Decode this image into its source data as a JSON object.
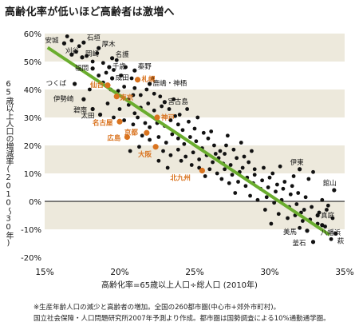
{
  "title": "高齢化率が低いほど高齢者は激増へ",
  "notes": [
    "※生産年齢人口の減少と高齢者の増加。全国の260都市圏(中心市+郊外市町村)。",
    "国立社会保障・人口問題研究所2007年予測より作成。都市圏は国勢調査による10%通勤通学圏。"
  ],
  "colors": {
    "band": "#ede9dc",
    "trend": "#6aad2e",
    "dot": "#111111",
    "highlight": "#d9731f",
    "label_normal": "#111111",
    "label_highlight": "#d9731f"
  },
  "chart_data": {
    "type": "scatter",
    "title": "高齢化率が低いほど高齢者は激増へ",
    "xlabel": "高齢化率=65歳以上人口÷総人口 (2010年)",
    "ylabel": "65歳以上人口の増減率(2010〜30年)",
    "xlim": [
      15,
      35
    ],
    "ylim": [
      -20,
      60
    ],
    "xticks": [
      "15%",
      "20%",
      "25%",
      "30%",
      "35%"
    ],
    "yticks": [
      "-20%",
      "-10%",
      "0%",
      "10%",
      "20%",
      "30%",
      "40%",
      "50%",
      "60%"
    ],
    "trend_line": {
      "x": [
        15.2,
        34.0
      ],
      "y": [
        55.0,
        -12.0
      ]
    },
    "labeled_points": [
      {
        "name": "安城",
        "x": 16.3,
        "y": 56.5,
        "highlight": false
      },
      {
        "name": "石垣",
        "x": 17.6,
        "y": 56.8,
        "highlight": false
      },
      {
        "name": "刈谷",
        "x": 16.8,
        "y": 52.5,
        "highlight": false
      },
      {
        "name": "岡崎",
        "x": 17.5,
        "y": 51.5,
        "highlight": false
      },
      {
        "name": "厚木",
        "x": 18.6,
        "y": 54.8,
        "highlight": false
      },
      {
        "name": "名護",
        "x": 19.5,
        "y": 51.2,
        "highlight": false
      },
      {
        "name": "福岡",
        "x": 18.2,
        "y": 47.5,
        "highlight": false
      },
      {
        "name": "千歳",
        "x": 19.3,
        "y": 48.0,
        "highlight": false
      },
      {
        "name": "秦野",
        "x": 21.0,
        "y": 46.8,
        "highlight": false
      },
      {
        "name": "成田",
        "x": 19.5,
        "y": 44.0,
        "highlight": false
      },
      {
        "name": "つくば",
        "x": 17.0,
        "y": 42.0,
        "highlight": false
      },
      {
        "name": "仙台",
        "x": 19.2,
        "y": 41.5,
        "highlight": true
      },
      {
        "name": "札幌",
        "x": 21.2,
        "y": 43.5,
        "highlight": true
      },
      {
        "name": "東京",
        "x": 19.8,
        "y": 37.5,
        "highlight": true
      },
      {
        "name": "鹿嶋・神栖",
        "x": 22.0,
        "y": 42.0,
        "highlight": false
      },
      {
        "name": "伊勢崎",
        "x": 17.6,
        "y": 36.5,
        "highlight": false
      },
      {
        "name": "宮古島",
        "x": 23.0,
        "y": 35.5,
        "highlight": false
      },
      {
        "name": "碧南",
        "x": 18.2,
        "y": 33.0,
        "highlight": false
      },
      {
        "name": "太田",
        "x": 18.7,
        "y": 31.0,
        "highlight": false
      },
      {
        "name": "神戸",
        "x": 22.5,
        "y": 30.0,
        "highlight": true
      },
      {
        "name": "名古屋",
        "x": 20.0,
        "y": 28.5,
        "highlight": true
      },
      {
        "name": "広島",
        "x": 20.5,
        "y": 23.0,
        "highlight": true
      },
      {
        "name": "京都",
        "x": 21.8,
        "y": 24.5,
        "highlight": true
      },
      {
        "name": "大阪",
        "x": 22.4,
        "y": 19.5,
        "highlight": true
      },
      {
        "name": "北九州",
        "x": 25.5,
        "y": 11.0,
        "highlight": true
      },
      {
        "name": "伊東",
        "x": 32.0,
        "y": 11.5,
        "highlight": false
      },
      {
        "name": "館山",
        "x": 34.3,
        "y": 4.0,
        "highlight": false
      },
      {
        "name": "真庭",
        "x": 33.2,
        "y": -5.0,
        "highlight": false
      },
      {
        "name": "八幡浜",
        "x": 33.5,
        "y": -8.5,
        "highlight": false
      },
      {
        "name": "美馬",
        "x": 32.5,
        "y": -10.5,
        "highlight": false
      },
      {
        "name": "萩",
        "x": 34.4,
        "y": -11.5,
        "highlight": false
      },
      {
        "name": "釜石",
        "x": 32.9,
        "y": -14.5,
        "highlight": false
      }
    ],
    "points": [
      [
        16.5,
        59
      ],
      [
        16.8,
        57.5
      ],
      [
        17.1,
        53.5
      ],
      [
        17.3,
        55.5
      ],
      [
        17.8,
        52
      ],
      [
        18.2,
        50
      ],
      [
        18.5,
        53
      ],
      [
        18.9,
        49.5
      ],
      [
        19.1,
        46
      ],
      [
        19.6,
        47
      ],
      [
        20.1,
        45
      ],
      [
        20.4,
        48
      ],
      [
        20.8,
        44
      ],
      [
        18.6,
        45
      ],
      [
        18.9,
        42.5
      ],
      [
        19.4,
        40
      ],
      [
        19.9,
        39.5
      ],
      [
        20.3,
        41
      ],
      [
        20.6,
        36.5
      ],
      [
        21.0,
        40.5
      ],
      [
        21.4,
        38
      ],
      [
        21.8,
        40
      ],
      [
        22.3,
        38.5
      ],
      [
        22.7,
        37.5
      ],
      [
        19.2,
        35
      ],
      [
        20.0,
        33
      ],
      [
        20.6,
        34.5
      ],
      [
        21.0,
        31.5
      ],
      [
        21.4,
        33.5
      ],
      [
        21.9,
        35
      ],
      [
        22.3,
        32.5
      ],
      [
        22.8,
        34
      ],
      [
        23.3,
        33
      ],
      [
        23.7,
        30.5
      ],
      [
        19.6,
        30
      ],
      [
        20.3,
        29
      ],
      [
        20.9,
        27.5
      ],
      [
        21.2,
        30
      ],
      [
        21.7,
        28
      ],
      [
        22.0,
        26.5
      ],
      [
        22.5,
        28
      ],
      [
        23.0,
        27
      ],
      [
        23.4,
        29
      ],
      [
        23.9,
        27.5
      ],
      [
        24.2,
        25.5
      ],
      [
        24.6,
        28.5
      ],
      [
        25.0,
        26
      ],
      [
        21.5,
        23.5
      ],
      [
        22.0,
        22
      ],
      [
        22.6,
        23
      ],
      [
        23.1,
        21
      ],
      [
        23.5,
        24
      ],
      [
        23.9,
        22.5
      ],
      [
        24.3,
        20.5
      ],
      [
        24.7,
        23
      ],
      [
        25.1,
        21.5
      ],
      [
        25.5,
        19
      ],
      [
        25.9,
        22.5
      ],
      [
        26.3,
        20
      ],
      [
        26.7,
        18
      ],
      [
        22.9,
        18
      ],
      [
        23.4,
        16.5
      ],
      [
        23.9,
        18.5
      ],
      [
        24.4,
        16
      ],
      [
        24.9,
        17.5
      ],
      [
        25.3,
        15
      ],
      [
        25.8,
        16.5
      ],
      [
        26.2,
        14
      ],
      [
        26.6,
        15.5
      ],
      [
        27.0,
        17
      ],
      [
        27.4,
        13
      ],
      [
        27.8,
        15.5
      ],
      [
        28.2,
        12
      ],
      [
        28.6,
        14
      ],
      [
        29.0,
        11.5
      ],
      [
        24.8,
        13
      ],
      [
        25.3,
        12
      ],
      [
        26.0,
        11.5
      ],
      [
        26.5,
        10
      ],
      [
        27.0,
        11.5
      ],
      [
        27.5,
        9.5
      ],
      [
        28.0,
        10.5
      ],
      [
        28.5,
        8.5
      ],
      [
        29.0,
        9.5
      ],
      [
        29.5,
        7.5
      ],
      [
        30.0,
        8.5
      ],
      [
        30.5,
        6
      ],
      [
        26.8,
        8
      ],
      [
        27.3,
        6.5
      ],
      [
        27.9,
        7
      ],
      [
        28.4,
        5.5
      ],
      [
        28.9,
        6.5
      ],
      [
        29.4,
        4.5
      ],
      [
        29.9,
        5
      ],
      [
        30.4,
        3.5
      ],
      [
        30.9,
        4.5
      ],
      [
        31.4,
        2.5
      ],
      [
        31.9,
        3
      ],
      [
        32.4,
        1.5
      ],
      [
        28.7,
        2
      ],
      [
        29.2,
        0.5
      ],
      [
        29.8,
        1.5
      ],
      [
        30.3,
        -0.5
      ],
      [
        30.8,
        0.5
      ],
      [
        31.3,
        -2
      ],
      [
        31.8,
        -1
      ],
      [
        32.3,
        -3
      ],
      [
        32.8,
        -2
      ],
      [
        33.3,
        -4
      ],
      [
        33.8,
        -3
      ],
      [
        30.6,
        -4.5
      ],
      [
        31.2,
        -6
      ],
      [
        31.7,
        -5
      ],
      [
        32.2,
        -7
      ],
      [
        32.7,
        -6.5
      ],
      [
        33.2,
        -8
      ],
      [
        33.7,
        -9
      ],
      [
        31.0,
        7
      ],
      [
        31.5,
        5.5
      ],
      [
        32.1,
        -4
      ],
      [
        24.0,
        31
      ],
      [
        25.6,
        24.5
      ],
      [
        26.1,
        25
      ],
      [
        27.1,
        20
      ],
      [
        27.6,
        18.5
      ],
      [
        28.1,
        21
      ],
      [
        26.4,
        17
      ],
      [
        23.2,
        12
      ],
      [
        22.6,
        14.5
      ],
      [
        20.7,
        18
      ],
      [
        21.3,
        19.5
      ],
      [
        29.6,
        12
      ],
      [
        30.2,
        10
      ],
      [
        31.6,
        9
      ],
      [
        32.6,
        8
      ],
      [
        33.5,
        0.5
      ],
      [
        33.9,
        -1.5
      ],
      [
        34.2,
        -6
      ],
      [
        19.8,
        50.5
      ],
      [
        20.9,
        38
      ],
      [
        24.5,
        33
      ],
      [
        25.2,
        30
      ],
      [
        27.2,
        23.5
      ],
      [
        28.8,
        18
      ],
      [
        26.9,
        13.5
      ],
      [
        25.7,
        9
      ],
      [
        27.7,
        3
      ],
      [
        29.7,
        -3
      ],
      [
        30.1,
        -8
      ],
      [
        32.9,
        10.5
      ],
      [
        34.1,
        -13.5
      ],
      [
        18.0,
        40
      ],
      [
        22.2,
        44
      ],
      [
        23.6,
        36.5
      ],
      [
        24.1,
        14.5
      ],
      [
        28.3,
        16
      ],
      [
        30.7,
        12.5
      ],
      [
        32.0,
        -9.5
      ]
    ]
  }
}
